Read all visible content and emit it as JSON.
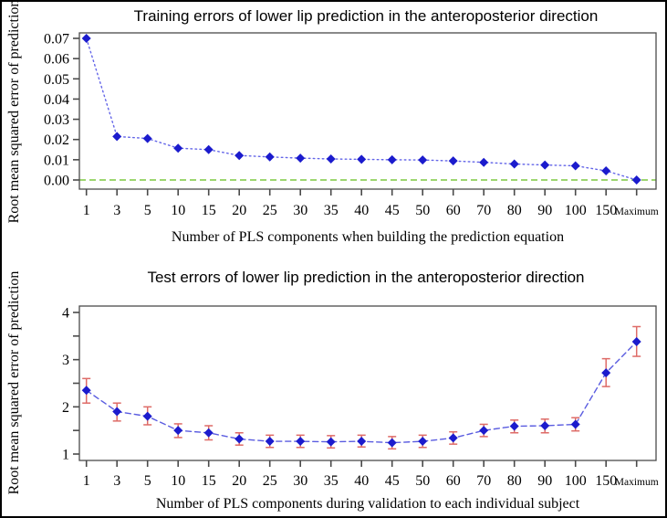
{
  "chart_data": [
    {
      "type": "line",
      "title": "Training errors of lower lip prediction in the anteroposterior direction",
      "xlabel": "Number of PLS components when building the prediction equation",
      "ylabel": "Root mean squared error of prediction",
      "categories": [
        "1",
        "3",
        "5",
        "10",
        "15",
        "20",
        "25",
        "30",
        "35",
        "40",
        "45",
        "50",
        "60",
        "70",
        "80",
        "90",
        "100",
        "150",
        "Maximum"
      ],
      "values": [
        0.07,
        0.0215,
        0.0205,
        0.0157,
        0.015,
        0.0121,
        0.0114,
        0.0108,
        0.0104,
        0.0102,
        0.01,
        0.0099,
        0.0094,
        0.0087,
        0.0079,
        0.0074,
        0.007,
        0.0045,
        0.0
      ],
      "ytick_values": [
        0,
        0.01,
        0.02,
        0.03,
        0.04,
        0.05,
        0.06,
        0.07
      ],
      "ytick_labels": [
        "0.00",
        "0.01",
        "0.02",
        "0.03",
        "0.04",
        "0.05",
        "0.06",
        "0.07"
      ],
      "ylim": [
        -0.0045,
        0.0727
      ],
      "reference_line_y": 0,
      "line_style": "dotted",
      "marker": "diamond",
      "colors": {
        "marker": "#1b1bcd",
        "line": "#6365e8",
        "reference_line": "#7dc940"
      },
      "grid": "off",
      "legend": "none"
    },
    {
      "type": "line",
      "title": "Test errors of lower lip prediction in the anteroposterior direction",
      "xlabel": "Number of PLS components during validation to each individual subject",
      "ylabel": "Root mean squared error of prediction",
      "categories": [
        "1",
        "3",
        "5",
        "10",
        "15",
        "20",
        "25",
        "30",
        "35",
        "40",
        "45",
        "50",
        "60",
        "70",
        "80",
        "90",
        "100",
        "150",
        "Maximum"
      ],
      "values": [
        2.35,
        1.9,
        1.8,
        1.5,
        1.45,
        1.32,
        1.27,
        1.27,
        1.26,
        1.27,
        1.24,
        1.27,
        1.34,
        1.5,
        1.59,
        1.6,
        1.63,
        2.72,
        3.38
      ],
      "error_low": [
        2.08,
        1.7,
        1.62,
        1.35,
        1.3,
        1.19,
        1.14,
        1.14,
        1.13,
        1.15,
        1.11,
        1.14,
        1.21,
        1.37,
        1.45,
        1.45,
        1.49,
        2.43,
        3.07
      ],
      "error_high": [
        2.6,
        2.08,
        2.0,
        1.64,
        1.6,
        1.45,
        1.4,
        1.4,
        1.39,
        1.4,
        1.37,
        1.4,
        1.47,
        1.63,
        1.72,
        1.74,
        1.77,
        3.02,
        3.7
      ],
      "ytick_values": [
        1,
        2,
        3,
        4
      ],
      "ytick_labels": [
        "1",
        "2",
        "3",
        "4"
      ],
      "y_minor_ticks": [
        1.5,
        2.5,
        3.5
      ],
      "ylim": [
        0.865,
        4.135
      ],
      "line_style": "dashed",
      "marker": "diamond",
      "colors": {
        "marker": "#1b1bcd",
        "line": "#5a5ce0",
        "error_bar": "#de6b67"
      },
      "grid": "off",
      "legend": "none"
    }
  ]
}
